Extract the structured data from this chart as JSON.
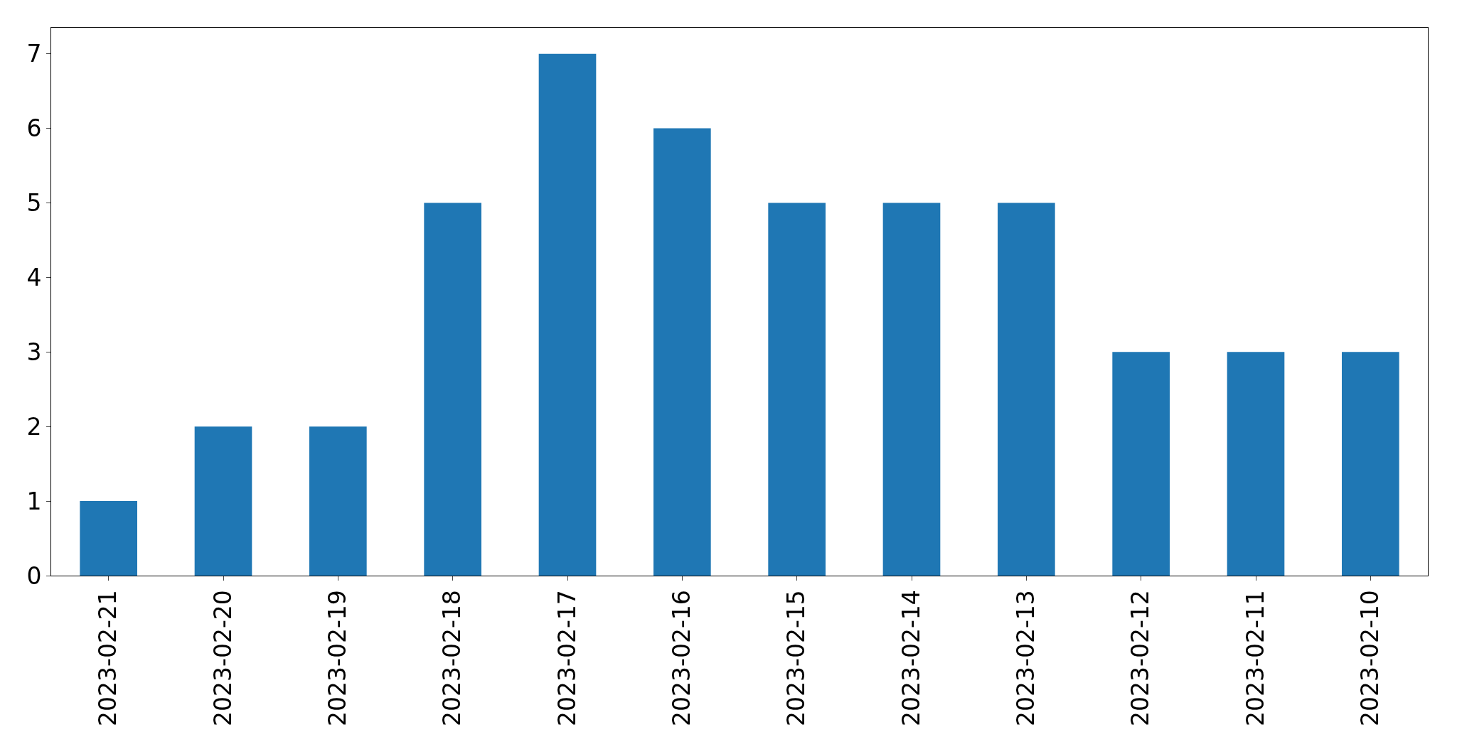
{
  "chart_data": {
    "type": "bar",
    "categories": [
      "2023-02-21",
      "2023-02-20",
      "2023-02-19",
      "2023-02-18",
      "2023-02-17",
      "2023-02-16",
      "2023-02-15",
      "2023-02-14",
      "2023-02-13",
      "2023-02-12",
      "2023-02-11",
      "2023-02-10"
    ],
    "values": [
      1,
      2,
      2,
      5,
      7,
      6,
      5,
      5,
      5,
      3,
      3,
      3
    ],
    "color": "#1f77b4",
    "ylim": [
      0,
      7.35
    ],
    "yticks": [
      0,
      1,
      2,
      3,
      4,
      5,
      6,
      7
    ]
  }
}
